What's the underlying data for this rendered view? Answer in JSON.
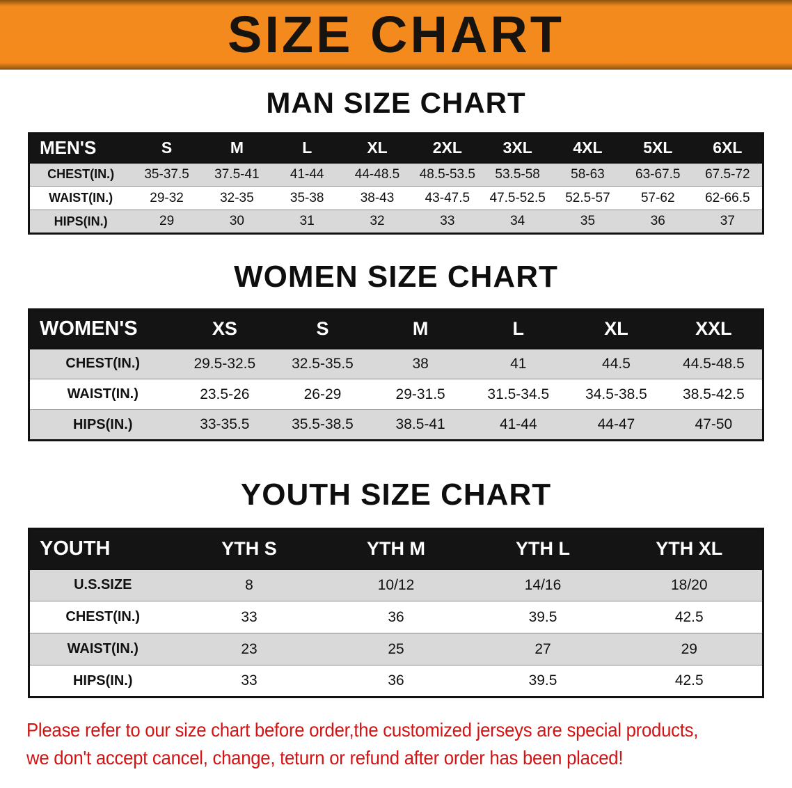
{
  "banner": {
    "title": "SIZE CHART"
  },
  "colors": {
    "banner_orange": "#F5891C",
    "table_header_black": "#141414",
    "stripe_gray": "#D9D9D9",
    "disclaimer_red": "#D21414"
  },
  "sections": [
    {
      "id": "men",
      "heading": "MAN SIZE CHART",
      "table": {
        "header": [
          "MEN'S",
          "S",
          "M",
          "L",
          "XL",
          "2XL",
          "3XL",
          "4XL",
          "5XL",
          "6XL"
        ],
        "rows": [
          {
            "label": "CHEST(IN.)",
            "values": [
              "35-37.5",
              "37.5-41",
              "41-44",
              "44-48.5",
              "48.5-53.5",
              "53.5-58",
              "58-63",
              "63-67.5",
              "67.5-72"
            ]
          },
          {
            "label": "WAIST(IN.)",
            "values": [
              "29-32",
              "32-35",
              "35-38",
              "38-43",
              "43-47.5",
              "47.5-52.5",
              "52.5-57",
              "57-62",
              "62-66.5"
            ]
          },
          {
            "label": "HIPS(IN.)",
            "values": [
              "29",
              "30",
              "31",
              "32",
              "33",
              "34",
              "35",
              "36",
              "37"
            ]
          }
        ]
      }
    },
    {
      "id": "women",
      "heading": "WOMEN SIZE CHART",
      "table": {
        "header": [
          "WOMEN'S",
          "XS",
          "S",
          "M",
          "L",
          "XL",
          "XXL"
        ],
        "rows": [
          {
            "label": "CHEST(IN.)",
            "values": [
              "29.5-32.5",
              "32.5-35.5",
              "38",
              "41",
              "44.5",
              "44.5-48.5"
            ]
          },
          {
            "label": "WAIST(IN.)",
            "values": [
              "23.5-26",
              "26-29",
              "29-31.5",
              "31.5-34.5",
              "34.5-38.5",
              "38.5-42.5"
            ]
          },
          {
            "label": "HIPS(IN.)",
            "values": [
              "33-35.5",
              "35.5-38.5",
              "38.5-41",
              "41-44",
              "44-47",
              "47-50"
            ]
          }
        ]
      }
    },
    {
      "id": "youth",
      "heading": "YOUTH SIZE CHART",
      "table": {
        "header": [
          "YOUTH",
          "YTH S",
          "YTH M",
          "YTH L",
          "YTH XL"
        ],
        "rows": [
          {
            "label": "U.S.SIZE",
            "values": [
              "8",
              "10/12",
              "14/16",
              "18/20"
            ]
          },
          {
            "label": "CHEST(IN.)",
            "values": [
              "33",
              "36",
              "39.5",
              "42.5"
            ]
          },
          {
            "label": "WAIST(IN.)",
            "values": [
              "23",
              "25",
              "27",
              "29"
            ]
          },
          {
            "label": "HIPS(IN.)",
            "values": [
              "33",
              "36",
              "39.5",
              "42.5"
            ]
          }
        ]
      }
    }
  ],
  "disclaimer": {
    "line1": "Please refer to our size chart before order,the customized jerseys are special products,",
    "line2": "we don't accept cancel, change, teturn or refund after order has been placed!"
  }
}
